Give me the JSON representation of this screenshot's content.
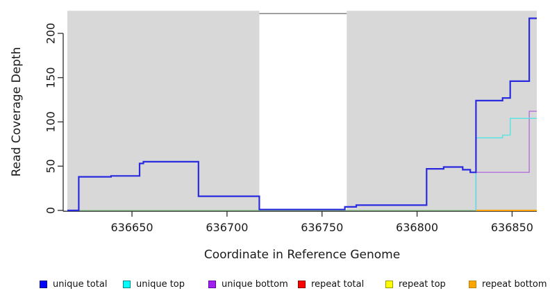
{
  "chart_data": {
    "type": "line",
    "subtype": "step-coverage-plot",
    "title": "",
    "xlabel": "Coordinate in Reference Genome",
    "ylabel": "Read Coverage Depth",
    "xlim": [
      636616,
      636863
    ],
    "ylim": [
      0,
      222
    ],
    "x_ticks": [
      "636650",
      "636700",
      "636750",
      "636800",
      "636850"
    ],
    "x_tick_values": [
      636650,
      636700,
      636750,
      636800,
      636850
    ],
    "y_ticks": [
      "0",
      "50",
      "100",
      "150",
      "200"
    ],
    "y_tick_values": [
      0,
      50,
      100,
      150,
      200
    ],
    "grid": false,
    "legend_position": "bottom",
    "background": {
      "page_color": "#FFFFFF",
      "plot_bg": "#D8D8D8",
      "gap_region": [
        636717,
        636763
      ],
      "gap_color": "#FFFFFF",
      "box_top_color": "#808080",
      "axis_color": "#2b2b2b"
    },
    "series": [
      {
        "name": "baseline green",
        "color": "#8FCE8F",
        "width": 1.3,
        "points": [
          [
            636616,
            0
          ],
          [
            636831,
            0
          ]
        ]
      },
      {
        "name": "repeat bottom",
        "color": "#FFA500",
        "width": 2,
        "points": [
          [
            636831,
            0
          ],
          [
            636863,
            0
          ]
        ]
      },
      {
        "name": "unique bottom",
        "color": "#B46FDC",
        "width": 1.4,
        "points": [
          [
            636831,
            0
          ],
          [
            636831,
            43
          ],
          [
            636859,
            43
          ],
          [
            636859,
            112
          ],
          [
            636863,
            112
          ]
        ]
      },
      {
        "name": "unique top",
        "color": "#55E3E3",
        "width": 1.4,
        "points": [
          [
            636831,
            0
          ],
          [
            636831,
            82
          ],
          [
            636845,
            82
          ],
          [
            636845,
            85
          ],
          [
            636849,
            85
          ],
          [
            636849,
            104
          ],
          [
            636863,
            104
          ]
        ]
      },
      {
        "name": "unique total",
        "color": "#2A2ADF",
        "width": 2.2,
        "points": [
          [
            636616,
            0
          ],
          [
            636622,
            0
          ],
          [
            636622,
            38
          ],
          [
            636639,
            38
          ],
          [
            636639,
            39
          ],
          [
            636654,
            39
          ],
          [
            636654,
            53
          ],
          [
            636656,
            53
          ],
          [
            636656,
            55
          ],
          [
            636685,
            55
          ],
          [
            636685,
            16
          ],
          [
            636717,
            16
          ],
          [
            636717,
            1
          ],
          [
            636762,
            1
          ],
          [
            636762,
            4
          ],
          [
            636768,
            4
          ],
          [
            636768,
            6
          ],
          [
            636805,
            6
          ],
          [
            636805,
            47
          ],
          [
            636814,
            47
          ],
          [
            636814,
            49
          ],
          [
            636824,
            49
          ],
          [
            636824,
            46
          ],
          [
            636828,
            46
          ],
          [
            636828,
            43
          ],
          [
            636831,
            43
          ],
          [
            636831,
            124
          ],
          [
            636845,
            124
          ],
          [
            636845,
            127
          ],
          [
            636849,
            127
          ],
          [
            636849,
            146
          ],
          [
            636859,
            146
          ],
          [
            636859,
            217
          ],
          [
            636863,
            217
          ]
        ]
      }
    ],
    "legend": [
      {
        "label": "unique total",
        "fill": "#0000FF",
        "border": "#000080"
      },
      {
        "label": "unique top",
        "fill": "#00FFFF",
        "border": "#008B8B"
      },
      {
        "label": "unique bottom",
        "fill": "#A020F0",
        "border": "#6600AA"
      },
      {
        "label": "repeat total",
        "fill": "#FF0000",
        "border": "#8B0000"
      },
      {
        "label": "repeat top",
        "fill": "#FFFF00",
        "border": "#999900"
      },
      {
        "label": "repeat bottom",
        "fill": "#FFA500",
        "border": "#B8860B"
      }
    ]
  }
}
